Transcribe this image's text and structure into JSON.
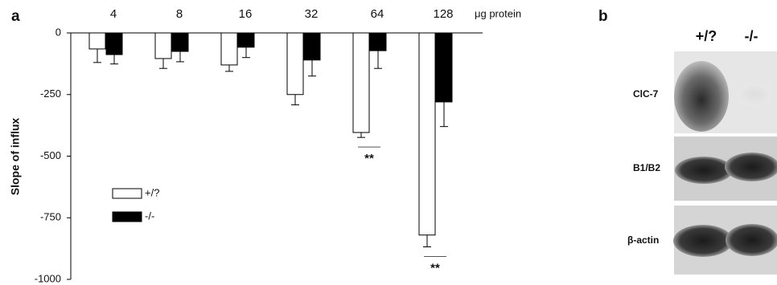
{
  "chart_data": {
    "type": "bar",
    "panel_label": "a",
    "y_label": "Slope of influx",
    "x_label": "μg protein",
    "categories": [
      "4",
      "8",
      "16",
      "32",
      "64",
      "128"
    ],
    "series": [
      {
        "name": "+/?",
        "color": "#ffffff",
        "values": [
          -65,
          -104,
          -130,
          -250,
          -404,
          -820
        ],
        "errors": [
          55,
          40,
          26,
          42,
          20,
          48
        ]
      },
      {
        "name": "-/-",
        "color": "#000000",
        "values": [
          -88,
          -75,
          -58,
          -110,
          -72,
          -280
        ],
        "errors": [
          38,
          42,
          42,
          65,
          72,
          100
        ]
      }
    ],
    "ylim": [
      0,
      -1000
    ],
    "yticks": [
      0,
      -250,
      -500,
      -750,
      -1000
    ],
    "annotations": [
      {
        "text": "**",
        "category": "64"
      },
      {
        "text": "**",
        "category": "128"
      }
    ]
  },
  "blot": {
    "panel_label": "b",
    "lanes": [
      "+/?",
      "-/-"
    ],
    "rows": [
      "ClC-7",
      "B1/B2",
      "β-actin"
    ]
  }
}
